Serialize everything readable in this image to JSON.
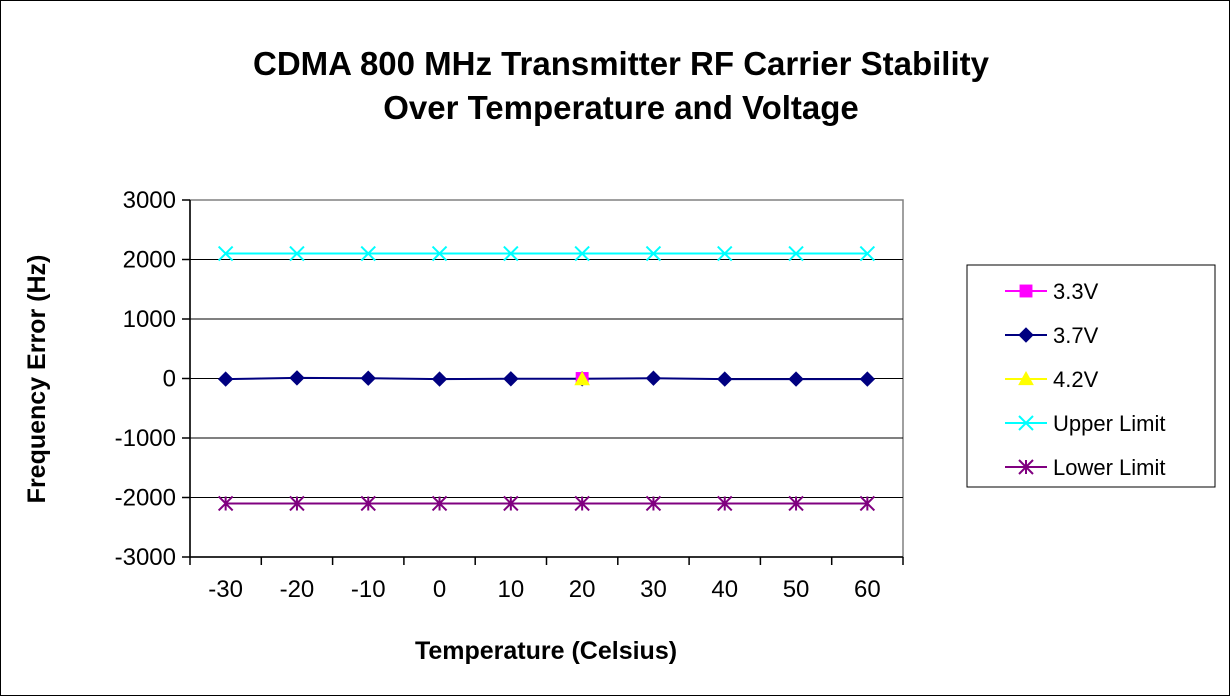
{
  "chart_data": {
    "type": "line",
    "title": [
      "CDMA 800 MHz Transmitter RF Carrier Stability",
      "Over Temperature and Voltage"
    ],
    "xlabel": "Temperature (Celsius)",
    "ylabel": "Frequency Error (Hz)",
    "x": [
      -30,
      -20,
      -10,
      0,
      10,
      20,
      30,
      40,
      50,
      60
    ],
    "x_tick_labels": [
      "-30",
      "-20",
      "-10",
      "0",
      "10",
      "20",
      "30",
      "40",
      "50",
      "60"
    ],
    "ylim": [
      -3000,
      3000
    ],
    "y_ticks": [
      3000,
      2000,
      1000,
      0,
      -1000,
      -2000,
      -3000
    ],
    "y_tick_labels": [
      "3000",
      "2000",
      "1000",
      "0",
      "-1000",
      "-2000",
      "-3000"
    ],
    "grid": "horizontal major gridlines",
    "legend_position": "right",
    "series": [
      {
        "name": "3.3V",
        "color": "#FF00FF",
        "marker": "square",
        "points": [
          [
            20,
            0
          ]
        ]
      },
      {
        "name": "3.7V",
        "color": "#000080",
        "marker": "diamond",
        "points": [
          [
            -30,
            -10
          ],
          [
            -20,
            10
          ],
          [
            -10,
            5
          ],
          [
            0,
            -10
          ],
          [
            10,
            -5
          ],
          [
            20,
            -5
          ],
          [
            30,
            5
          ],
          [
            40,
            -10
          ],
          [
            50,
            -10
          ],
          [
            60,
            -10
          ]
        ]
      },
      {
        "name": "4.2V",
        "color": "#FFFF00",
        "marker": "triangle",
        "points": [
          [
            20,
            -10
          ]
        ]
      },
      {
        "name": "Upper Limit",
        "color": "#00FFFF",
        "marker": "x",
        "points": [
          [
            -30,
            2100
          ],
          [
            -20,
            2100
          ],
          [
            -10,
            2100
          ],
          [
            0,
            2100
          ],
          [
            10,
            2100
          ],
          [
            20,
            2100
          ],
          [
            30,
            2100
          ],
          [
            40,
            2100
          ],
          [
            50,
            2100
          ],
          [
            60,
            2100
          ]
        ]
      },
      {
        "name": "Lower Limit",
        "color": "#800080",
        "marker": "asterisk",
        "points": [
          [
            -30,
            -2100
          ],
          [
            -20,
            -2100
          ],
          [
            -10,
            -2100
          ],
          [
            0,
            -2100
          ],
          [
            10,
            -2100
          ],
          [
            20,
            -2100
          ],
          [
            30,
            -2100
          ],
          [
            40,
            -2100
          ],
          [
            50,
            -2100
          ],
          [
            60,
            -2100
          ]
        ]
      }
    ]
  }
}
